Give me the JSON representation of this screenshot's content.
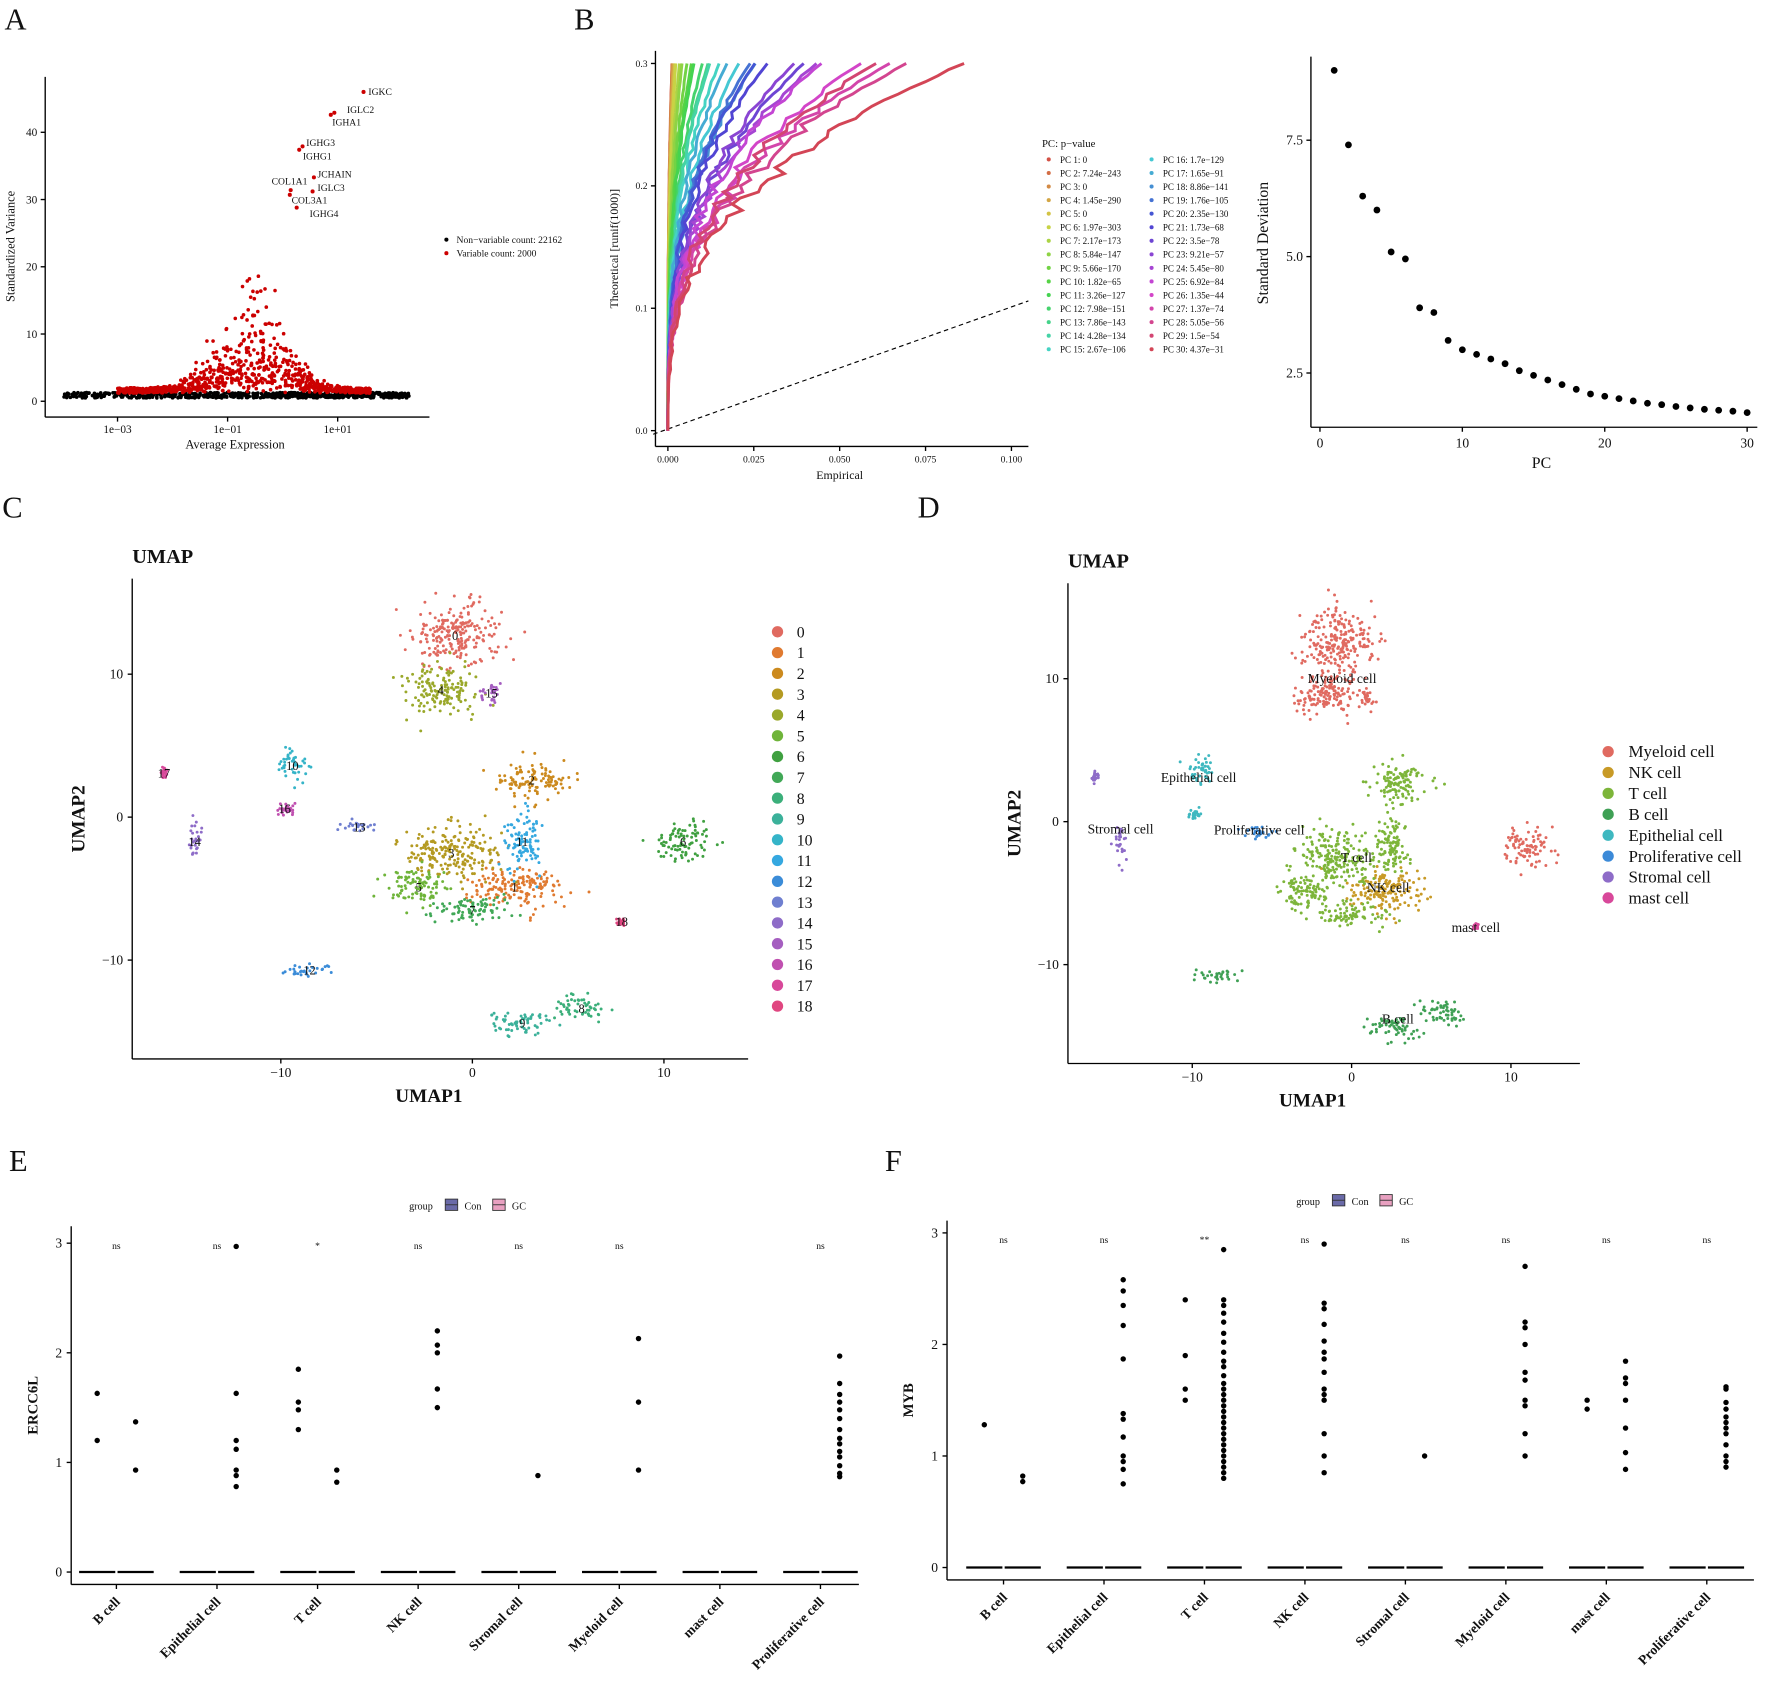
{
  "panel_labels": {
    "a": "A",
    "b": "B",
    "c": "C",
    "d": "D",
    "e": "E",
    "f": "F"
  },
  "chart_data": [
    {
      "type": "scatter",
      "panel": "A",
      "xlabel": "Average Expression",
      "ylabel": "Standardized Variance",
      "x_scale": "log10",
      "xticks": [
        {
          "value": 0.001,
          "label": "1e−03"
        },
        {
          "value": 0.1,
          "label": "1e−01"
        },
        {
          "value": 10,
          "label": "1e+01"
        }
      ],
      "yticks": [
        0,
        10,
        20,
        30,
        40
      ],
      "legend": [
        {
          "label": "Non−variable count: 22162",
          "color": "#000000"
        },
        {
          "label": "Variable count: 2000",
          "color": "#CC0000"
        }
      ],
      "labeled_genes": [
        {
          "gene": "IGKC",
          "x": 29.5,
          "y": 46.0
        },
        {
          "gene": "IGLC2",
          "x": 8.7,
          "y": 42.9
        },
        {
          "gene": "IGHA1",
          "x": 7.5,
          "y": 42.6
        },
        {
          "gene": "IGHG3",
          "x": 2.3,
          "y": 37.9
        },
        {
          "gene": "IGHG1",
          "x": 2.0,
          "y": 37.4
        },
        {
          "gene": "JCHAIN",
          "x": 3.7,
          "y": 33.3
        },
        {
          "gene": "COL1A1",
          "x": 1.4,
          "y": 31.4
        },
        {
          "gene": "IGLC3",
          "x": 3.5,
          "y": 31.2
        },
        {
          "gene": "COL3A1",
          "x": 1.35,
          "y": 30.7
        },
        {
          "gene": "IGHG4",
          "x": 1.8,
          "y": 28.8
        }
      ]
    },
    {
      "type": "line",
      "panel": "B-left",
      "xlabel": "Empirical",
      "ylabel": "Theoretical [runif(1000)]",
      "xticks": [
        "0.000",
        "0.025",
        "0.050",
        "0.075",
        "0.100"
      ],
      "xtick_values": [
        0,
        0.025,
        0.05,
        0.075,
        0.1
      ],
      "yticks": [
        "0.0",
        "0.1",
        "0.2",
        "0.3"
      ],
      "ytick_values": [
        0,
        0.1,
        0.2,
        0.3
      ],
      "xlim": [
        0,
        0.1
      ],
      "ylim": [
        0,
        0.3
      ],
      "legend_title": "PC: p−value",
      "series": [
        "PC 1: 0",
        "PC 2: 7.24e−243",
        "PC 3: 0",
        "PC 4: 1.45e−290",
        "PC 5: 0",
        "PC 6: 1.97e−303",
        "PC 7: 2.17e−173",
        "PC 8: 5.84e−147",
        "PC 9: 5.66e−170",
        "PC 10: 1.82e−65",
        "PC 11: 3.26e−127",
        "PC 12: 7.98e−151",
        "PC 13: 7.86e−143",
        "PC 14: 4.28e−134",
        "PC 15: 2.67e−106",
        "PC 16: 1.7e−129",
        "PC 17: 1.65e−91",
        "PC 18: 8.86e−141",
        "PC 19: 1.76e−105",
        "PC 20: 2.35e−130",
        "PC 21: 1.73e−68",
        "PC 22: 3.5e−78",
        "PC 23: 9.21e−57",
        "PC 24: 5.45e−80",
        "PC 25: 6.92e−84",
        "PC 26: 1.35e−44",
        "PC 27: 1.37e−74",
        "PC 28: 5.05e−56",
        "PC 29: 1.5e−54",
        "PC 30: 4.37e−31"
      ]
    },
    {
      "type": "scatter",
      "panel": "B-right",
      "xlabel": "PC",
      "ylabel": "Standard Deviation",
      "xticks": [
        0,
        10,
        20,
        30
      ],
      "yticks": [
        "2.5",
        "5.0",
        "7.5"
      ],
      "ytick_values": [
        2.5,
        5.0,
        7.5
      ],
      "x": [
        1,
        2,
        3,
        4,
        5,
        6,
        7,
        8,
        9,
        10,
        11,
        12,
        13,
        14,
        15,
        16,
        17,
        18,
        19,
        20,
        21,
        22,
        23,
        24,
        25,
        26,
        27,
        28,
        29,
        30
      ],
      "y": [
        9.0,
        7.4,
        6.3,
        6.0,
        5.1,
        4.95,
        3.9,
        3.8,
        3.2,
        3.0,
        2.9,
        2.8,
        2.7,
        2.55,
        2.45,
        2.35,
        2.25,
        2.15,
        2.05,
        2.0,
        1.95,
        1.9,
        1.85,
        1.82,
        1.78,
        1.75,
        1.72,
        1.7,
        1.68,
        1.65
      ]
    },
    {
      "type": "scatter",
      "panel": "C",
      "title": "UMAP",
      "xlabel": "UMAP1",
      "ylabel": "UMAP2",
      "xticks": [
        "−10",
        "0",
        "10"
      ],
      "xtick_values": [
        -10,
        0,
        10
      ],
      "yticks": [
        "−10",
        "0",
        "10"
      ],
      "ytick_values": [
        -10,
        0,
        10
      ],
      "clusters": [
        {
          "label": "0",
          "color": "#E06A60",
          "center": [
            -0.9,
            12.7
          ],
          "spread": [
            1.6,
            1.6
          ]
        },
        {
          "label": "1",
          "color": "#E07A30",
          "center": [
            2.2,
            -4.9
          ],
          "spread": [
            1.8,
            1.0
          ]
        },
        {
          "label": "2",
          "color": "#CC8A1E",
          "center": [
            3.1,
            2.6
          ],
          "spread": [
            1.4,
            0.9
          ]
        },
        {
          "label": "3",
          "color": "#B49A22",
          "center": [
            -1.1,
            -2.5
          ],
          "spread": [
            1.8,
            1.3
          ]
        },
        {
          "label": "4",
          "color": "#9AA82A",
          "center": [
            -1.65,
            8.9
          ],
          "spread": [
            1.4,
            1.2
          ]
        },
        {
          "label": "5",
          "color": "#6FB43A",
          "center": [
            -2.8,
            -4.9
          ],
          "spread": [
            1.2,
            0.9
          ]
        },
        {
          "label": "6",
          "color": "#3FA040",
          "center": [
            11.0,
            -1.7
          ],
          "spread": [
            1.0,
            1.0
          ]
        },
        {
          "label": "7",
          "color": "#41A857",
          "center": [
            0.0,
            -6.5
          ],
          "spread": [
            1.6,
            0.6
          ]
        },
        {
          "label": "8",
          "color": "#3BAF7A",
          "center": [
            5.7,
            -13.4
          ],
          "spread": [
            1.0,
            0.6
          ]
        },
        {
          "label": "9",
          "color": "#3BB19A",
          "center": [
            2.6,
            -14.4
          ],
          "spread": [
            1.2,
            0.6
          ]
        },
        {
          "label": "10",
          "color": "#35B4C8",
          "center": [
            -9.4,
            3.6
          ],
          "spread": [
            0.6,
            0.8
          ]
        },
        {
          "label": "11",
          "color": "#35A8E0",
          "center": [
            2.6,
            -1.7
          ],
          "spread": [
            0.7,
            1.6
          ]
        },
        {
          "label": "12",
          "color": "#3B8CD8",
          "center": [
            -8.5,
            -10.7
          ],
          "spread": [
            1.0,
            0.35
          ]
        },
        {
          "label": "13",
          "color": "#6F7FD0",
          "center": [
            -5.9,
            -0.7
          ],
          "spread": [
            0.6,
            0.3
          ]
        },
        {
          "label": "14",
          "color": "#8E6CC8",
          "center": [
            -14.5,
            -1.7
          ],
          "spread": [
            0.3,
            1.0
          ]
        },
        {
          "label": "15",
          "color": "#A55EC0",
          "center": [
            1.0,
            8.7
          ],
          "spread": [
            0.4,
            0.5
          ]
        },
        {
          "label": "16",
          "color": "#C050B0",
          "center": [
            -9.8,
            0.6
          ],
          "spread": [
            0.3,
            0.3
          ]
        },
        {
          "label": "17",
          "color": "#D8489A",
          "center": [
            -16.1,
            3.1
          ],
          "spread": [
            0.15,
            0.3
          ]
        },
        {
          "label": "18",
          "color": "#E04680",
          "center": [
            7.8,
            -7.3
          ],
          "spread": [
            0.15,
            0.2
          ]
        }
      ]
    },
    {
      "type": "scatter",
      "panel": "D",
      "title": "UMAP",
      "xlabel": "UMAP1",
      "ylabel": "UMAP2",
      "xticks": [
        "−10",
        "0",
        "10"
      ],
      "xtick_values": [
        -10,
        0,
        10
      ],
      "yticks": [
        "−10",
        "0",
        "10"
      ],
      "ytick_values": [
        -10,
        0,
        10
      ],
      "cell_types": [
        {
          "label": "Myeloid cell",
          "color": "#E06A60",
          "clusters": [
            "0",
            "4",
            "15",
            "6"
          ],
          "label_pos": [
            -0.6,
            10.0
          ]
        },
        {
          "label": "NK cell",
          "color": "#C89A26",
          "clusters": [
            "1"
          ],
          "label_pos": [
            2.3,
            -4.6
          ]
        },
        {
          "label": "T cell",
          "color": "#7DB53A",
          "clusters": [
            "2",
            "3",
            "5",
            "7",
            "11"
          ],
          "label_pos": [
            0.3,
            -2.5
          ]
        },
        {
          "label": "B cell",
          "color": "#3FA055",
          "clusters": [
            "8",
            "9",
            "12"
          ],
          "label_pos": [
            2.9,
            -13.8
          ]
        },
        {
          "label": "Epithelial cell",
          "color": "#3FB8C0",
          "clusters": [
            "10",
            "16"
          ],
          "label_pos": [
            -9.6,
            3.1
          ]
        },
        {
          "label": "Proliferative cell",
          "color": "#3C8AD8",
          "clusters": [
            "13"
          ],
          "label_pos": [
            -5.8,
            -0.6
          ]
        },
        {
          "label": "Stromal cell",
          "color": "#8E6CC8",
          "clusters": [
            "14",
            "17"
          ],
          "label_pos": [
            -14.5,
            -0.5
          ]
        },
        {
          "label": "mast cell",
          "color": "#D8489A",
          "clusters": [
            "18"
          ],
          "label_pos": [
            7.8,
            -7.4
          ]
        }
      ]
    },
    {
      "type": "box",
      "panel": "E",
      "ylabel": "ERCC6L",
      "yticks": [
        0,
        1,
        2,
        3
      ],
      "legend_title": "group",
      "groups": [
        {
          "name": "Con",
          "color": "#6A6AA8"
        },
        {
          "name": "GC",
          "color": "#E8A0C0"
        }
      ],
      "categories": [
        "B cell",
        "Epithelial cell",
        "T cell",
        "NK cell",
        "Stromal cell",
        "Myeloid cell",
        "mast cell",
        "Proliferative cell"
      ],
      "significance": [
        "ns",
        "ns",
        "*",
        "ns",
        "ns",
        "ns",
        "",
        "ns"
      ],
      "median": 0,
      "outliers": [
        {
          "Con": [
            1.63,
            1.2
          ],
          "GC": [
            1.37,
            0.93
          ]
        },
        {
          "Con": [],
          "GC": [
            2.97,
            1.63,
            1.2,
            1.12,
            0.93,
            0.88,
            0.78
          ]
        },
        {
          "Con": [
            1.85,
            1.55,
            1.48,
            1.3
          ],
          "GC": [
            0.93,
            0.82
          ]
        },
        {
          "Con": [],
          "GC": [
            2.2,
            2.07,
            2.0,
            1.67,
            1.5
          ]
        },
        {
          "Con": [],
          "GC": [
            0.88
          ]
        },
        {
          "Con": [],
          "GC": [
            2.13,
            1.55,
            0.93
          ]
        },
        {
          "Con": [],
          "GC": []
        },
        {
          "Con": [],
          "GC": [
            1.97,
            1.72,
            1.62,
            1.55,
            1.48,
            1.4,
            1.3,
            1.22,
            1.17,
            1.1,
            1.05,
            0.97,
            0.9,
            0.87
          ]
        }
      ]
    },
    {
      "type": "box",
      "panel": "F",
      "ylabel": "MYB",
      "yticks": [
        0,
        1,
        2,
        3
      ],
      "legend_title": "group",
      "groups": [
        {
          "name": "Con",
          "color": "#6A6AA8"
        },
        {
          "name": "GC",
          "color": "#E8A0C0"
        }
      ],
      "categories": [
        "B cell",
        "Epithelial cell",
        "T cell",
        "NK cell",
        "Stromal cell",
        "Myeloid cell",
        "mast cell",
        "Proliferative cell"
      ],
      "significance": [
        "ns",
        "ns",
        "**",
        "ns",
        "ns",
        "ns",
        "ns",
        "ns"
      ],
      "median": 0,
      "outliers": [
        {
          "Con": [
            1.28
          ],
          "GC": [
            0.82,
            0.77
          ]
        },
        {
          "Con": [],
          "GC": [
            2.58,
            2.48,
            2.35,
            2.17,
            1.87,
            1.38,
            1.33,
            1.17,
            1.0,
            0.95,
            0.88,
            0.75
          ]
        },
        {
          "Con": [
            2.4,
            1.9,
            1.6,
            1.5
          ],
          "GC": [
            2.85,
            2.4,
            2.35,
            2.28,
            2.2,
            2.1,
            2.02,
            1.93,
            1.85,
            1.8,
            1.72,
            1.65,
            1.6,
            1.55,
            1.5,
            1.45,
            1.4,
            1.35,
            1.3,
            1.25,
            1.2,
            1.15,
            1.1,
            1.05,
            1.0,
            0.95,
            0.9,
            0.85,
            0.8
          ]
        },
        {
          "Con": [],
          "GC": [
            2.9,
            2.37,
            2.32,
            2.18,
            2.03,
            1.93,
            1.87,
            1.75,
            1.6,
            1.55,
            1.5,
            1.2,
            1.0,
            0.85
          ]
        },
        {
          "Con": [],
          "GC": [
            1.0
          ]
        },
        {
          "Con": [],
          "GC": [
            2.7,
            2.2,
            2.15,
            2.0,
            1.75,
            1.68,
            1.5,
            1.45,
            1.2,
            1.0
          ]
        },
        {
          "Con": [
            1.5,
            1.42
          ],
          "GC": [
            1.85,
            1.7,
            1.65,
            1.5,
            1.25,
            1.03,
            0.88
          ]
        },
        {
          "Con": [],
          "GC": [
            1.62,
            1.6,
            1.48,
            1.42,
            1.35,
            1.3,
            1.25,
            1.2,
            1.1,
            1.0,
            0.95,
            0.9
          ]
        }
      ]
    }
  ]
}
